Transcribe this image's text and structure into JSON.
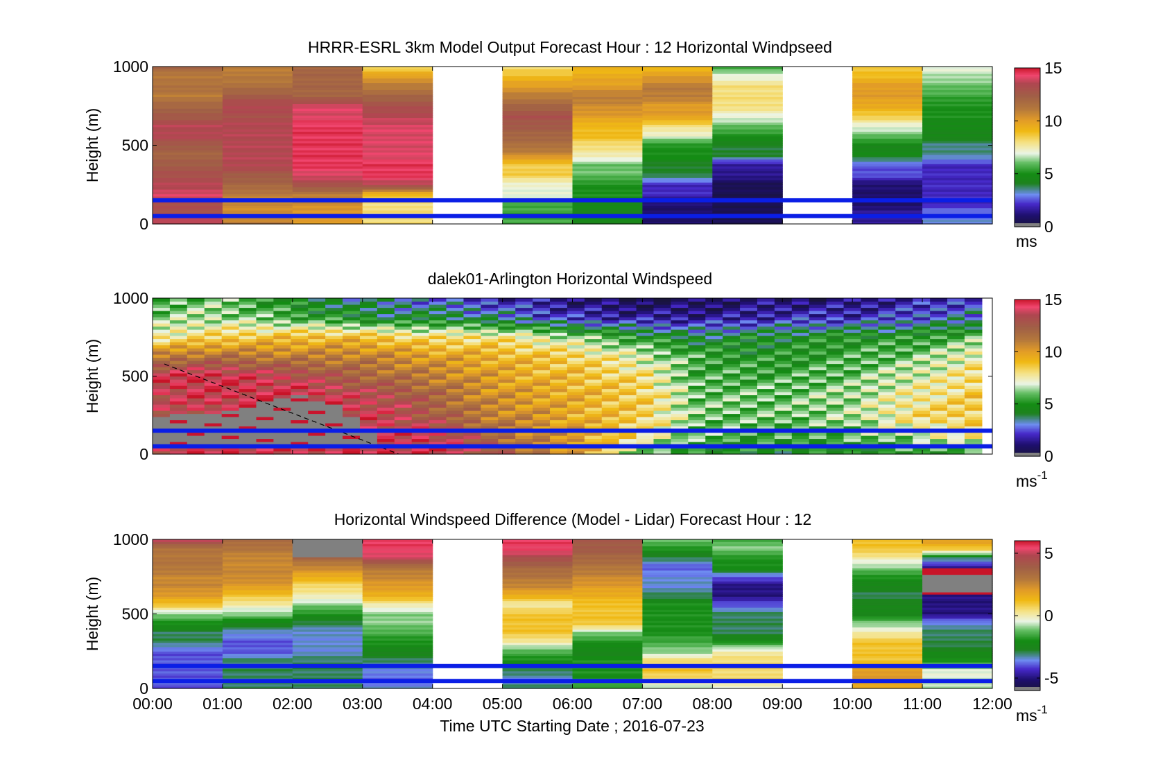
{
  "chart_data": [
    {
      "type": "heatmap",
      "title": "HRRR-ESRL 3km Model Output   Forecast Hour : 12 Horizontal Windpseed",
      "ylabel": "Height (m)",
      "ylim": [
        0,
        1000
      ],
      "yticks": [
        "0",
        "500",
        "1000"
      ],
      "xlim": [
        0,
        12
      ],
      "colorbar": {
        "min": 0,
        "max": 15,
        "ticks": [
          0,
          5,
          10,
          15
        ],
        "unit": "ms",
        "unit_sup": ""
      },
      "reference_lines_m": [
        150,
        50
      ],
      "columns": [
        {
          "t0": 0,
          "t1": 1,
          "v": [
            14,
            13,
            13,
            14,
            13.5,
            13,
            12.5,
            12,
            12.5,
            13.5,
            13.5,
            12.5,
            12,
            11,
            11.5,
            11,
            12
          ]
        },
        {
          "t0": 1,
          "t1": 2,
          "v": [
            11,
            10.5,
            10.5,
            11,
            12,
            12.5,
            13.5,
            13.5,
            13.5,
            13.5,
            13.5,
            13,
            13.5,
            12.5,
            11.5,
            11,
            11
          ]
        },
        {
          "t0": 2,
          "t1": 3,
          "v": [
            10,
            10,
            10.5,
            11,
            13,
            14,
            14.5,
            14.5,
            14.5,
            14.5,
            14.5,
            14,
            14,
            12,
            12,
            12,
            12
          ]
        },
        {
          "t0": 3,
          "t1": 4,
          "v": [
            8,
            8,
            8,
            9,
            13.5,
            14.5,
            14.5,
            14,
            14,
            14,
            14,
            13.5,
            13,
            12,
            11,
            10,
            8
          ]
        },
        {
          "t0": 5,
          "t1": 6,
          "v": [
            5.5,
            5.5,
            5.5,
            7,
            7,
            8.5,
            8.5,
            10.5,
            11.5,
            12,
            12.5,
            13,
            12,
            11,
            10,
            9,
            8
          ]
        },
        {
          "t0": 6,
          "t1": 7,
          "v": [
            4.5,
            4.5,
            4.5,
            5,
            5,
            6,
            6,
            7.5,
            8,
            9,
            9,
            10,
            10.5,
            11,
            10,
            9.5,
            9
          ]
        },
        {
          "t0": 7,
          "t1": 8,
          "v": [
            1,
            1,
            1,
            2,
            2,
            4,
            4,
            5,
            5,
            7,
            8,
            10,
            10,
            11,
            11,
            10,
            9
          ]
        },
        {
          "t0": 8,
          "t1": 9,
          "v": [
            0.5,
            0.5,
            0.5,
            0.5,
            0.5,
            1.5,
            1.5,
            4,
            4,
            5,
            6,
            7,
            8,
            8,
            8,
            7,
            5.5
          ]
        },
        {
          "t0": 10,
          "t1": 11,
          "v": [
            1.5,
            1.5,
            1,
            1,
            1,
            2.5,
            2.5,
            4.5,
            4.5,
            6,
            7,
            8.5,
            9.5,
            10,
            10,
            9,
            8.5
          ]
        },
        {
          "t0": 11,
          "t1": 12,
          "v": [
            3,
            3,
            2,
            2,
            2,
            2,
            2,
            3.5,
            3.5,
            4.5,
            4.5,
            5,
            5,
            5.5,
            6,
            6.5,
            7
          ]
        }
      ]
    },
    {
      "type": "heatmap",
      "title": "dalek01-Arlington  Horizontal Windspeed",
      "ylabel": "Height (m)",
      "ylim": [
        0,
        1000
      ],
      "yticks": [
        "0",
        "500",
        "1000"
      ],
      "xlim": [
        0,
        12
      ],
      "colorbar": {
        "min": 0,
        "max": 15,
        "ticks": [
          0,
          5,
          10,
          15
        ],
        "unit": "ms",
        "unit_sup": "-1"
      },
      "reference_lines_m": [
        150,
        50
      ],
      "profile_hours": [
        0.0,
        0.5,
        1.0,
        2.0,
        3.0,
        3.5,
        4.0,
        4.8,
        5.3,
        6.0,
        7.0,
        7.8,
        8.5,
        9.0,
        10.0,
        10.8,
        11.4,
        11.7
      ],
      "profile_kms": [
        [
          13.5,
          13.5,
          13.0,
          13.5,
          14.0,
          11.0,
          7.5,
          6.0,
          5.5
        ],
        [
          14.0,
          14.0,
          13.5,
          14.0,
          14.5,
          11.5,
          8.0,
          6.5,
          6.0
        ],
        [
          14.5,
          14.5,
          14.0,
          14.0,
          14.5,
          11.5,
          8.5,
          6.5,
          6.0
        ],
        [
          14.0,
          14.0,
          14.0,
          14.5,
          13.5,
          11.0,
          9.0,
          5.5,
          4.5
        ],
        [
          14.5,
          14.0,
          14.0,
          13.5,
          12.0,
          11.0,
          9.0,
          4.5,
          3.5
        ],
        [
          14.5,
          14.0,
          13.5,
          13.0,
          11.5,
          10.5,
          8.5,
          4.0,
          3.0
        ],
        [
          14.5,
          14.0,
          12.5,
          12.0,
          11.0,
          10.0,
          8.0,
          4.5,
          2.5
        ],
        [
          13.0,
          12.0,
          11.0,
          10.5,
          10.0,
          9.5,
          8.0,
          3.5,
          2.0
        ],
        [
          11.5,
          11.0,
          10.5,
          10.0,
          9.5,
          9.0,
          7.5,
          3.0,
          1.5
        ],
        [
          10.5,
          10.0,
          9.5,
          9.5,
          9.0,
          8.5,
          6.5,
          2.0,
          1.0
        ],
        [
          5.5,
          8.0,
          8.5,
          8.5,
          8.0,
          7.0,
          5.0,
          1.5,
          0.5
        ],
        [
          5.0,
          6.0,
          6.0,
          6.0,
          5.5,
          5.5,
          4.0,
          1.5,
          0.5
        ],
        [
          4.5,
          5.5,
          6.0,
          6.0,
          5.5,
          5.0,
          4.5,
          1.5,
          1.0
        ],
        [
          4.5,
          5.5,
          6.0,
          6.0,
          5.5,
          5.0,
          4.5,
          2.0,
          1.0
        ],
        [
          4.5,
          6.0,
          6.5,
          6.5,
          6.0,
          5.5,
          5.0,
          2.0,
          1.0
        ],
        [
          5.0,
          6.5,
          8.0,
          7.5,
          7.0,
          6.0,
          5.0,
          2.5,
          1.5
        ],
        [
          5.0,
          7.5,
          8.5,
          8.0,
          7.5,
          7.0,
          5.5,
          3.0,
          2.0
        ],
        [
          5.0,
          8.0,
          8.5,
          8.5,
          8.0,
          7.5,
          6.0,
          3.0,
          2.5
        ]
      ],
      "no_data_region": {
        "hours": [
          0.0,
          1.0,
          2.0,
          2.6,
          3.0,
          3.3
        ],
        "top_m": [
          240,
          270,
          380,
          320,
          180,
          60
        ]
      }
    },
    {
      "type": "heatmap",
      "title": "Horizontal Windspeed Difference (Model - Lidar) Forecast Hour : 12",
      "ylabel": "Height (m)",
      "xlabel": "Time UTC  Starting Date ; 2016-07-23",
      "ylim": [
        0,
        1000
      ],
      "yticks": [
        "0",
        "500",
        "1000"
      ],
      "xlim": [
        0,
        12
      ],
      "xticks": [
        "00:00",
        "01:00",
        "02:00",
        "03:00",
        "04:00",
        "05:00",
        "06:00",
        "07:00",
        "08:00",
        "09:00",
        "10:00",
        "11:00",
        "12:00"
      ],
      "colorbar": {
        "min": -6,
        "max": 6,
        "ticks": [
          -5,
          0,
          5
        ],
        "unit": "ms",
        "unit_sup": "-1"
      },
      "reference_lines_m": [
        150,
        50
      ],
      "columns": [
        {
          "t0": 0,
          "t1": 1,
          "v": [
            -4,
            -4,
            -4,
            -4,
            -4,
            -3,
            -3,
            -2,
            -1,
            1,
            2,
            2.5,
            2.5,
            3,
            3,
            3,
            5
          ]
        },
        {
          "t0": 1,
          "t1": 2,
          "v": [
            -3,
            -3,
            -3,
            -3,
            -4,
            -4,
            -3.5,
            -2.5,
            -1,
            0,
            1,
            2,
            2.5,
            2.5,
            2.5,
            3,
            3.5
          ]
        },
        {
          "t0": 2,
          "t1": 3,
          "v": [
            -3,
            -3,
            -3,
            -3,
            -3.5,
            -3.5,
            -3.5,
            -3,
            -2,
            -1,
            0,
            0.5,
            1.5,
            2.5,
            3.5,
            99,
            99
          ]
        },
        {
          "t0": 3,
          "t1": 4,
          "v": [
            -3.5,
            -4,
            -3.5,
            -3,
            -2.5,
            -2,
            -1.5,
            -1,
            -1,
            0,
            1.5,
            2,
            2.5,
            3,
            5,
            5.5,
            5.5
          ]
        },
        {
          "t0": 5,
          "t1": 6,
          "v": [
            -3,
            -3.5,
            -3,
            -2,
            -1.5,
            0,
            1,
            1,
            1,
            0,
            1.5,
            2.5,
            3,
            3.5,
            4.5,
            5.5,
            5.5
          ]
        },
        {
          "t0": 6,
          "t1": 7,
          "v": [
            -1.5,
            -2,
            -2,
            -2,
            -2.5,
            -2,
            -1,
            1,
            1,
            1,
            1.5,
            2,
            2.5,
            3,
            3.5,
            4,
            4
          ]
        },
        {
          "t0": 7,
          "t1": 8,
          "v": [
            -1,
            0.5,
            1,
            0.5,
            -1,
            -1.5,
            -2,
            -2,
            -2,
            -2,
            -3,
            -3.5,
            -3.5,
            -4,
            -3,
            -2,
            -1
          ]
        },
        {
          "t0": 8,
          "t1": 9,
          "v": [
            -0.5,
            0.5,
            0.5,
            0.5,
            0,
            -2,
            -3,
            -3,
            -3,
            -4,
            -5,
            -5,
            -4,
            -2,
            -2,
            -1,
            -1.5
          ]
        },
        {
          "t0": 10,
          "t1": 11,
          "v": [
            1.5,
            2,
            2,
            1,
            1,
            1,
            0,
            -1,
            -2.5,
            -2.5,
            -3,
            -2.5,
            -2,
            -1,
            0,
            1,
            1
          ]
        },
        {
          "t0": 11,
          "t1": 12,
          "v": [
            -1,
            -0.5,
            -0.5,
            -2,
            -2.5,
            -3,
            -3,
            -3.5,
            -5,
            -5,
            -5,
            99,
            99,
            -5,
            -3,
            1,
            2
          ]
        }
      ]
    }
  ]
}
